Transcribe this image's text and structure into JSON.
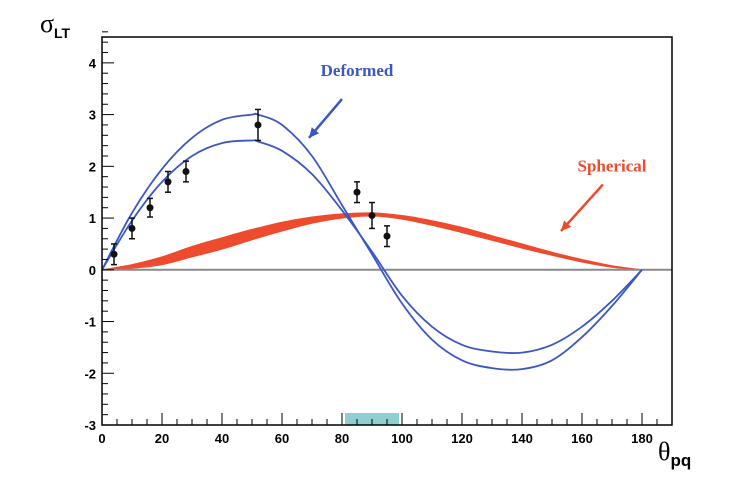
{
  "chart_data": {
    "type": "line",
    "title": "",
    "ylabel_main": "σ",
    "ylabel_sub": "LT",
    "xlabel_main": "θ",
    "xlabel_sub": "pq",
    "xlim": [
      0,
      190
    ],
    "ylim": [
      -3,
      4.5
    ],
    "x_ticks": [
      0,
      20,
      40,
      60,
      80,
      100,
      120,
      140,
      160,
      180
    ],
    "y_ticks": [
      -3,
      -2,
      -1,
      0,
      1,
      2,
      3,
      4
    ],
    "highlight_band": {
      "x": [
        81,
        99
      ],
      "color": "#8fcfd1"
    },
    "series": [
      {
        "name": "Deformed (upper)",
        "color": "#3b57c4",
        "x": [
          0,
          10,
          20,
          30,
          40,
          50,
          52,
          60,
          70,
          80,
          90,
          100,
          110,
          120,
          130,
          140,
          150,
          160,
          170,
          180
        ],
        "y": [
          0,
          1.1,
          1.95,
          2.55,
          2.9,
          3.0,
          3.0,
          2.8,
          2.2,
          1.25,
          0.3,
          -0.65,
          -1.35,
          -1.75,
          -1.9,
          -1.92,
          -1.75,
          -1.3,
          -0.7,
          0
        ]
      },
      {
        "name": "Deformed (lower)",
        "color": "#3b57c4",
        "x": [
          0,
          10,
          20,
          30,
          40,
          50,
          52,
          60,
          70,
          80,
          90,
          100,
          110,
          120,
          130,
          140,
          150,
          160,
          170,
          180
        ],
        "y": [
          0,
          0.95,
          1.7,
          2.2,
          2.45,
          2.5,
          2.48,
          2.3,
          1.85,
          1.15,
          0.35,
          -0.5,
          -1.1,
          -1.45,
          -1.58,
          -1.6,
          -1.45,
          -1.1,
          -0.6,
          0
        ]
      }
    ],
    "band": {
      "name": "Spherical",
      "color": "#ee4a2e",
      "x": [
        0,
        10,
        20,
        30,
        40,
        50,
        60,
        70,
        80,
        90,
        100,
        110,
        120,
        130,
        140,
        150,
        160,
        170,
        180
      ],
      "upper": [
        0,
        0.1,
        0.25,
        0.45,
        0.62,
        0.78,
        0.92,
        1.02,
        1.08,
        1.1,
        1.05,
        0.95,
        0.82,
        0.66,
        0.5,
        0.34,
        0.2,
        0.08,
        0
      ],
      "lower": [
        0,
        0.03,
        0.1,
        0.25,
        0.4,
        0.58,
        0.75,
        0.9,
        1.0,
        1.04,
        0.98,
        0.86,
        0.72,
        0.57,
        0.42,
        0.28,
        0.15,
        0.05,
        0
      ]
    },
    "data_points": {
      "color": "#111111",
      "x": [
        4,
        10,
        16,
        22,
        28,
        52,
        85,
        90,
        95
      ],
      "y": [
        0.3,
        0.8,
        1.2,
        1.7,
        1.9,
        2.8,
        1.5,
        1.05,
        0.65
      ],
      "err": [
        0.2,
        0.2,
        0.18,
        0.2,
        0.2,
        0.3,
        0.2,
        0.25,
        0.2
      ]
    },
    "annotations": [
      {
        "label": "Deformed",
        "color": "#3b57c4",
        "x": 85,
        "y": 3.75,
        "arrow_to": [
          69,
          2.55
        ],
        "arrow_from": [
          80,
          3.3
        ]
      },
      {
        "label": "Spherical",
        "color": "#ee4a2e",
        "x": 170,
        "y": 1.9,
        "arrow_to": [
          153,
          0.75
        ],
        "arrow_from": [
          167,
          1.65
        ]
      }
    ]
  }
}
